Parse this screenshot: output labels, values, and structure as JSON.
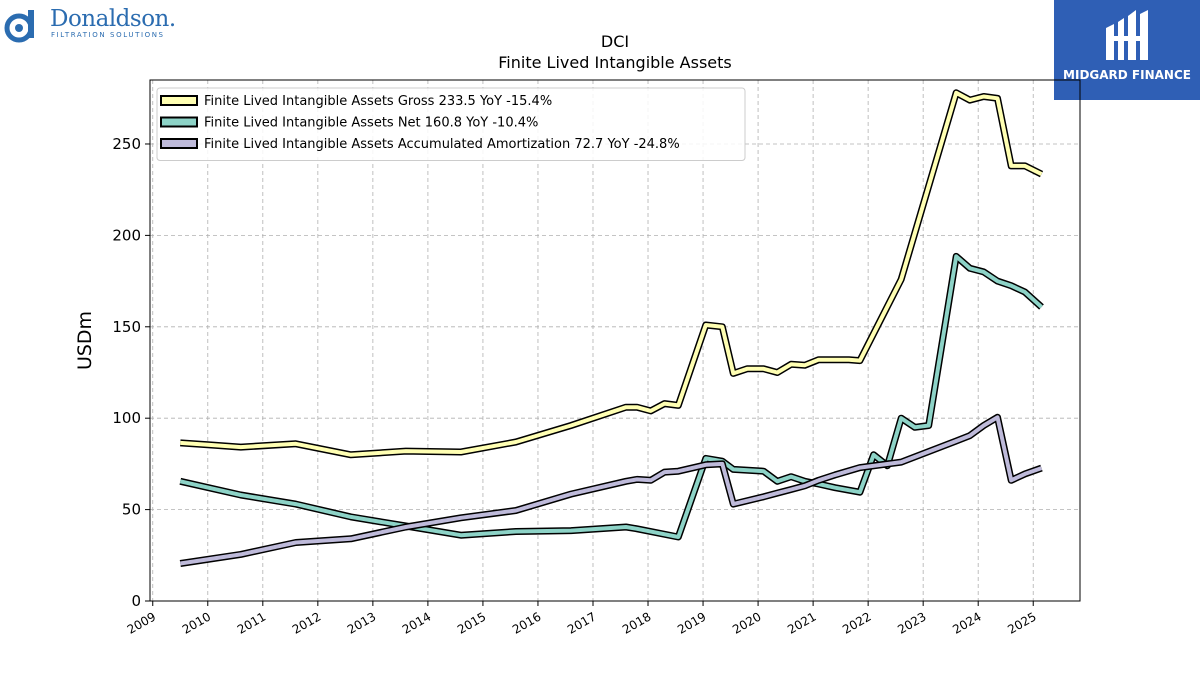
{
  "logos": {
    "left": {
      "name": "Donaldson.",
      "tagline": "FILTRATION SOLUTIONS",
      "color": "#2b6cb0"
    },
    "right": {
      "name": "MIDGARD FINANCE",
      "color": "#2f5fb5"
    }
  },
  "chart_data": {
    "type": "line",
    "title": "DCI",
    "subtitle": "Finite Lived Intangible Assets",
    "ylabel": "USDm",
    "xlabel": "",
    "ylim": [
      0,
      285
    ],
    "xlim": [
      2008.95,
      2025.85
    ],
    "yticks": [
      0,
      50,
      100,
      150,
      200,
      250
    ],
    "xticks": [
      2009,
      2010,
      2011,
      2012,
      2013,
      2014,
      2015,
      2016,
      2017,
      2018,
      2019,
      2020,
      2021,
      2022,
      2023,
      2024,
      2025
    ],
    "grid": true,
    "legend_position": "top-left",
    "series": [
      {
        "name": "Finite Lived Intangible Assets Gross  233.5 YoY -15.4%",
        "color": "#ffffb3",
        "points": [
          [
            2009.5,
            86.5
          ],
          [
            2010.0,
            85.5
          ],
          [
            2010.6,
            84.2
          ],
          [
            2011.6,
            86.0
          ],
          [
            2012.6,
            80.0
          ],
          [
            2013.6,
            82.0
          ],
          [
            2014.6,
            81.5
          ],
          [
            2015.6,
            87.0
          ],
          [
            2016.6,
            96.0
          ],
          [
            2017.6,
            106.0
          ],
          [
            2017.8,
            106.0
          ],
          [
            2018.05,
            104.0
          ],
          [
            2018.3,
            108.0
          ],
          [
            2018.55,
            107.0
          ],
          [
            2019.05,
            151.0
          ],
          [
            2019.35,
            150.0
          ],
          [
            2019.55,
            124.5
          ],
          [
            2019.8,
            127.0
          ],
          [
            2020.1,
            127.0
          ],
          [
            2020.35,
            125.0
          ],
          [
            2020.6,
            129.5
          ],
          [
            2020.85,
            129.0
          ],
          [
            2021.1,
            132.0
          ],
          [
            2021.4,
            132.0
          ],
          [
            2021.65,
            132.0
          ],
          [
            2021.85,
            131.5
          ],
          [
            2022.6,
            176.0
          ],
          [
            2023.6,
            278.0
          ],
          [
            2023.85,
            274.0
          ],
          [
            2024.1,
            276.0
          ],
          [
            2024.35,
            275.0
          ],
          [
            2024.6,
            238.0
          ],
          [
            2024.85,
            238.0
          ],
          [
            2025.15,
            233.5
          ]
        ]
      },
      {
        "name": "Finite Lived Intangible Assets Net  160.8 YoY -10.4%",
        "color": "#8dd3c7",
        "points": [
          [
            2009.5,
            65.5
          ],
          [
            2010.6,
            58.0
          ],
          [
            2011.6,
            53.0
          ],
          [
            2012.6,
            46.0
          ],
          [
            2013.6,
            41.0
          ],
          [
            2014.6,
            36.0
          ],
          [
            2015.6,
            38.0
          ],
          [
            2016.6,
            38.5
          ],
          [
            2017.6,
            40.5
          ],
          [
            2017.8,
            39.5
          ],
          [
            2018.55,
            35.0
          ],
          [
            2019.05,
            78.0
          ],
          [
            2019.35,
            76.5
          ],
          [
            2019.55,
            72.0
          ],
          [
            2020.1,
            71.0
          ],
          [
            2020.35,
            65.5
          ],
          [
            2020.6,
            68.0
          ],
          [
            2020.85,
            65.5
          ],
          [
            2021.1,
            64.0
          ],
          [
            2021.4,
            62.0
          ],
          [
            2021.85,
            59.5
          ],
          [
            2022.1,
            80.0
          ],
          [
            2022.35,
            74.0
          ],
          [
            2022.6,
            100.0
          ],
          [
            2022.85,
            95.0
          ],
          [
            2023.1,
            96.0
          ],
          [
            2023.6,
            188.5
          ],
          [
            2023.85,
            182.0
          ],
          [
            2024.1,
            180.0
          ],
          [
            2024.35,
            175.0
          ],
          [
            2024.6,
            172.5
          ],
          [
            2024.85,
            169.0
          ],
          [
            2025.15,
            160.8
          ]
        ]
      },
      {
        "name": "Finite Lived Intangible Assets Accumulated Amortization  72.7 YoY -24.8%",
        "color": "#bebada",
        "points": [
          [
            2009.5,
            20.5
          ],
          [
            2010.6,
            25.5
          ],
          [
            2011.6,
            32.0
          ],
          [
            2012.6,
            34.0
          ],
          [
            2013.6,
            40.5
          ],
          [
            2014.6,
            45.5
          ],
          [
            2015.6,
            49.5
          ],
          [
            2016.6,
            58.5
          ],
          [
            2017.6,
            65.5
          ],
          [
            2017.8,
            66.5
          ],
          [
            2018.05,
            66.0
          ],
          [
            2018.3,
            70.5
          ],
          [
            2018.55,
            71.0
          ],
          [
            2019.05,
            74.5
          ],
          [
            2019.35,
            75.0
          ],
          [
            2019.55,
            53.0
          ],
          [
            2020.1,
            57.0
          ],
          [
            2020.35,
            59.0
          ],
          [
            2020.6,
            61.0
          ],
          [
            2020.85,
            63.0
          ],
          [
            2021.1,
            66.0
          ],
          [
            2021.4,
            69.0
          ],
          [
            2021.85,
            73.0
          ],
          [
            2022.6,
            76.0
          ],
          [
            2023.6,
            87.5
          ],
          [
            2023.85,
            90.5
          ],
          [
            2024.1,
            96.0
          ],
          [
            2024.35,
            100.5
          ],
          [
            2024.6,
            66.0
          ],
          [
            2024.85,
            69.5
          ],
          [
            2025.15,
            72.7
          ]
        ]
      }
    ]
  }
}
